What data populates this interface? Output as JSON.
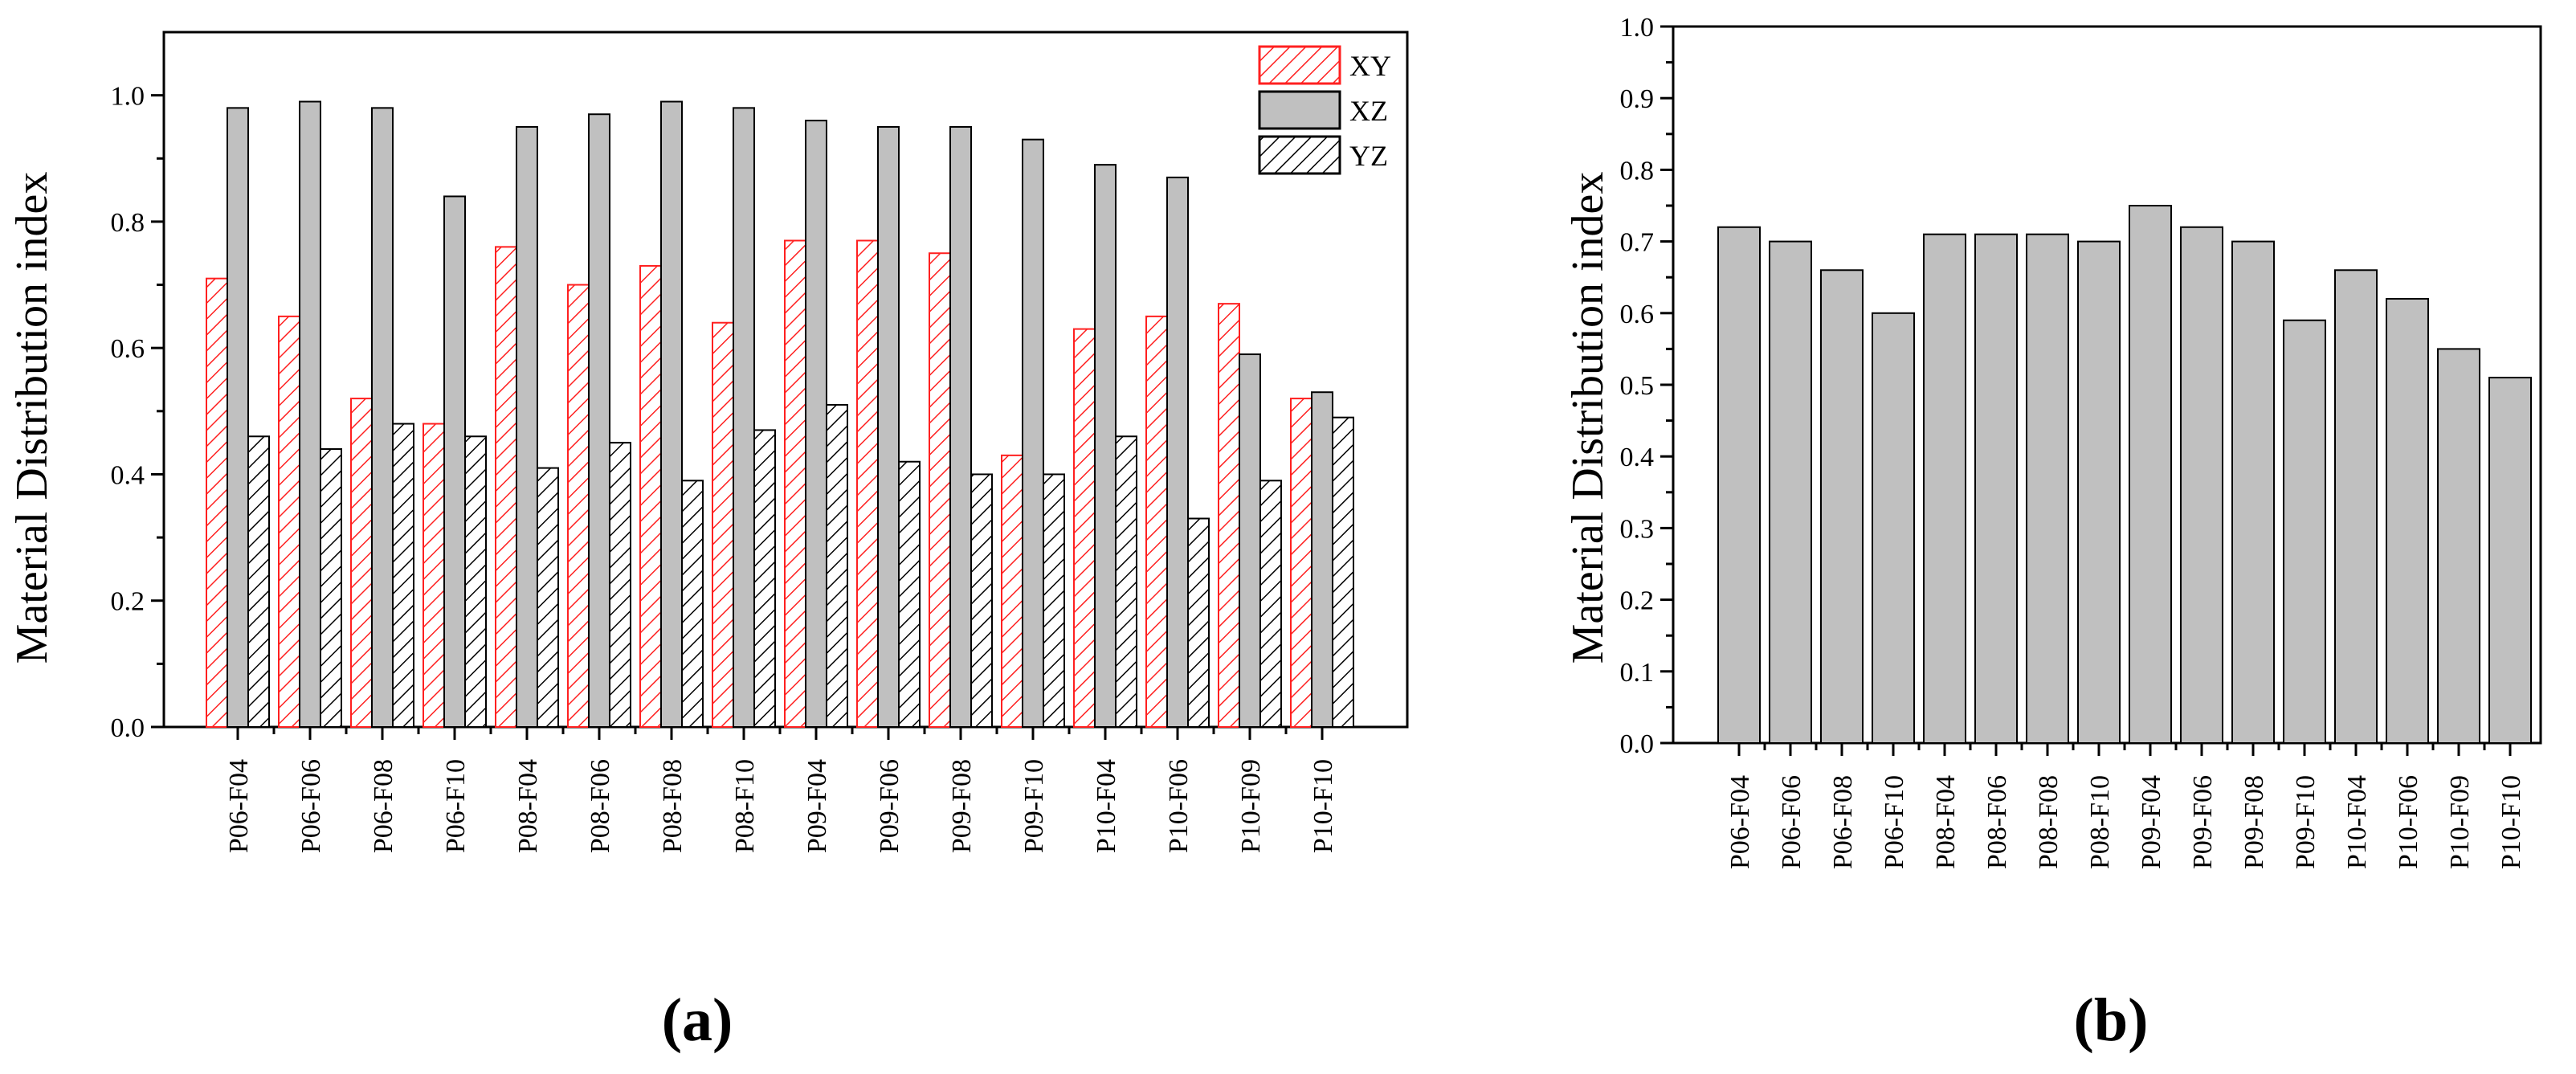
{
  "chart_data": [
    {
      "type": "bar",
      "panel_label": "(a)",
      "title": "",
      "xlabel": "",
      "ylabel": "Material Distribution index",
      "ylim": [
        0,
        1.1
      ],
      "yticks": [
        "0.0",
        "0.2",
        "0.4",
        "0.6",
        "0.8",
        "1.0"
      ],
      "grid": false,
      "legend_position": "top-right",
      "categories": [
        "P06-F04",
        "P06-F06",
        "P06-F08",
        "P06-F10",
        "P08-F04",
        "P08-F06",
        "P08-F08",
        "P08-F10",
        "P09-F04",
        "P09-F06",
        "P09-F08",
        "P09-F10",
        "P10-F04",
        "P10-F06",
        "P10-F09",
        "P10-F10"
      ],
      "series": [
        {
          "name": "XY",
          "values": [
            0.71,
            0.65,
            0.52,
            0.48,
            0.76,
            0.7,
            0.73,
            0.64,
            0.77,
            0.77,
            0.75,
            0.43,
            0.63,
            0.65,
            0.67,
            0.52
          ],
          "fill": "#ffffff",
          "hatch_color": "#ff2020",
          "edge": "#ff2020"
        },
        {
          "name": "XZ",
          "values": [
            0.98,
            0.99,
            0.98,
            0.84,
            0.95,
            0.97,
            0.99,
            0.98,
            0.96,
            0.95,
            0.95,
            0.93,
            0.89,
            0.87,
            0.59,
            0.53
          ],
          "fill": "#c0c0c0",
          "hatch_color": "",
          "edge": "#000000"
        },
        {
          "name": "YZ",
          "values": [
            0.46,
            0.44,
            0.48,
            0.46,
            0.41,
            0.45,
            0.39,
            0.47,
            0.51,
            0.42,
            0.4,
            0.4,
            0.46,
            0.33,
            0.39,
            0.49
          ],
          "fill": "#ffffff",
          "hatch_color": "#000000",
          "edge": "#000000"
        }
      ]
    },
    {
      "type": "bar",
      "panel_label": "(b)",
      "title": "",
      "xlabel": "",
      "ylabel": "Material Distribution index",
      "ylim": [
        0,
        1.0
      ],
      "yticks": [
        "0.0",
        "0.1",
        "0.2",
        "0.3",
        "0.4",
        "0.5",
        "0.6",
        "0.7",
        "0.8",
        "0.9",
        "1.0"
      ],
      "grid": false,
      "categories": [
        "P06-F04",
        "P06-F06",
        "P06-F08",
        "P06-F10",
        "P08-F04",
        "P08-F06",
        "P08-F08",
        "P08-F10",
        "P09-F04",
        "P09-F06",
        "P09-F08",
        "P09-F10",
        "P10-F04",
        "P10-F06",
        "P10-F09",
        "P10-F10"
      ],
      "series": [
        {
          "name": "",
          "values": [
            0.72,
            0.7,
            0.66,
            0.6,
            0.71,
            0.71,
            0.71,
            0.7,
            0.75,
            0.72,
            0.7,
            0.59,
            0.66,
            0.62,
            0.55,
            0.51
          ],
          "fill": "#c0c0c0",
          "edge": "#000000"
        }
      ]
    }
  ]
}
